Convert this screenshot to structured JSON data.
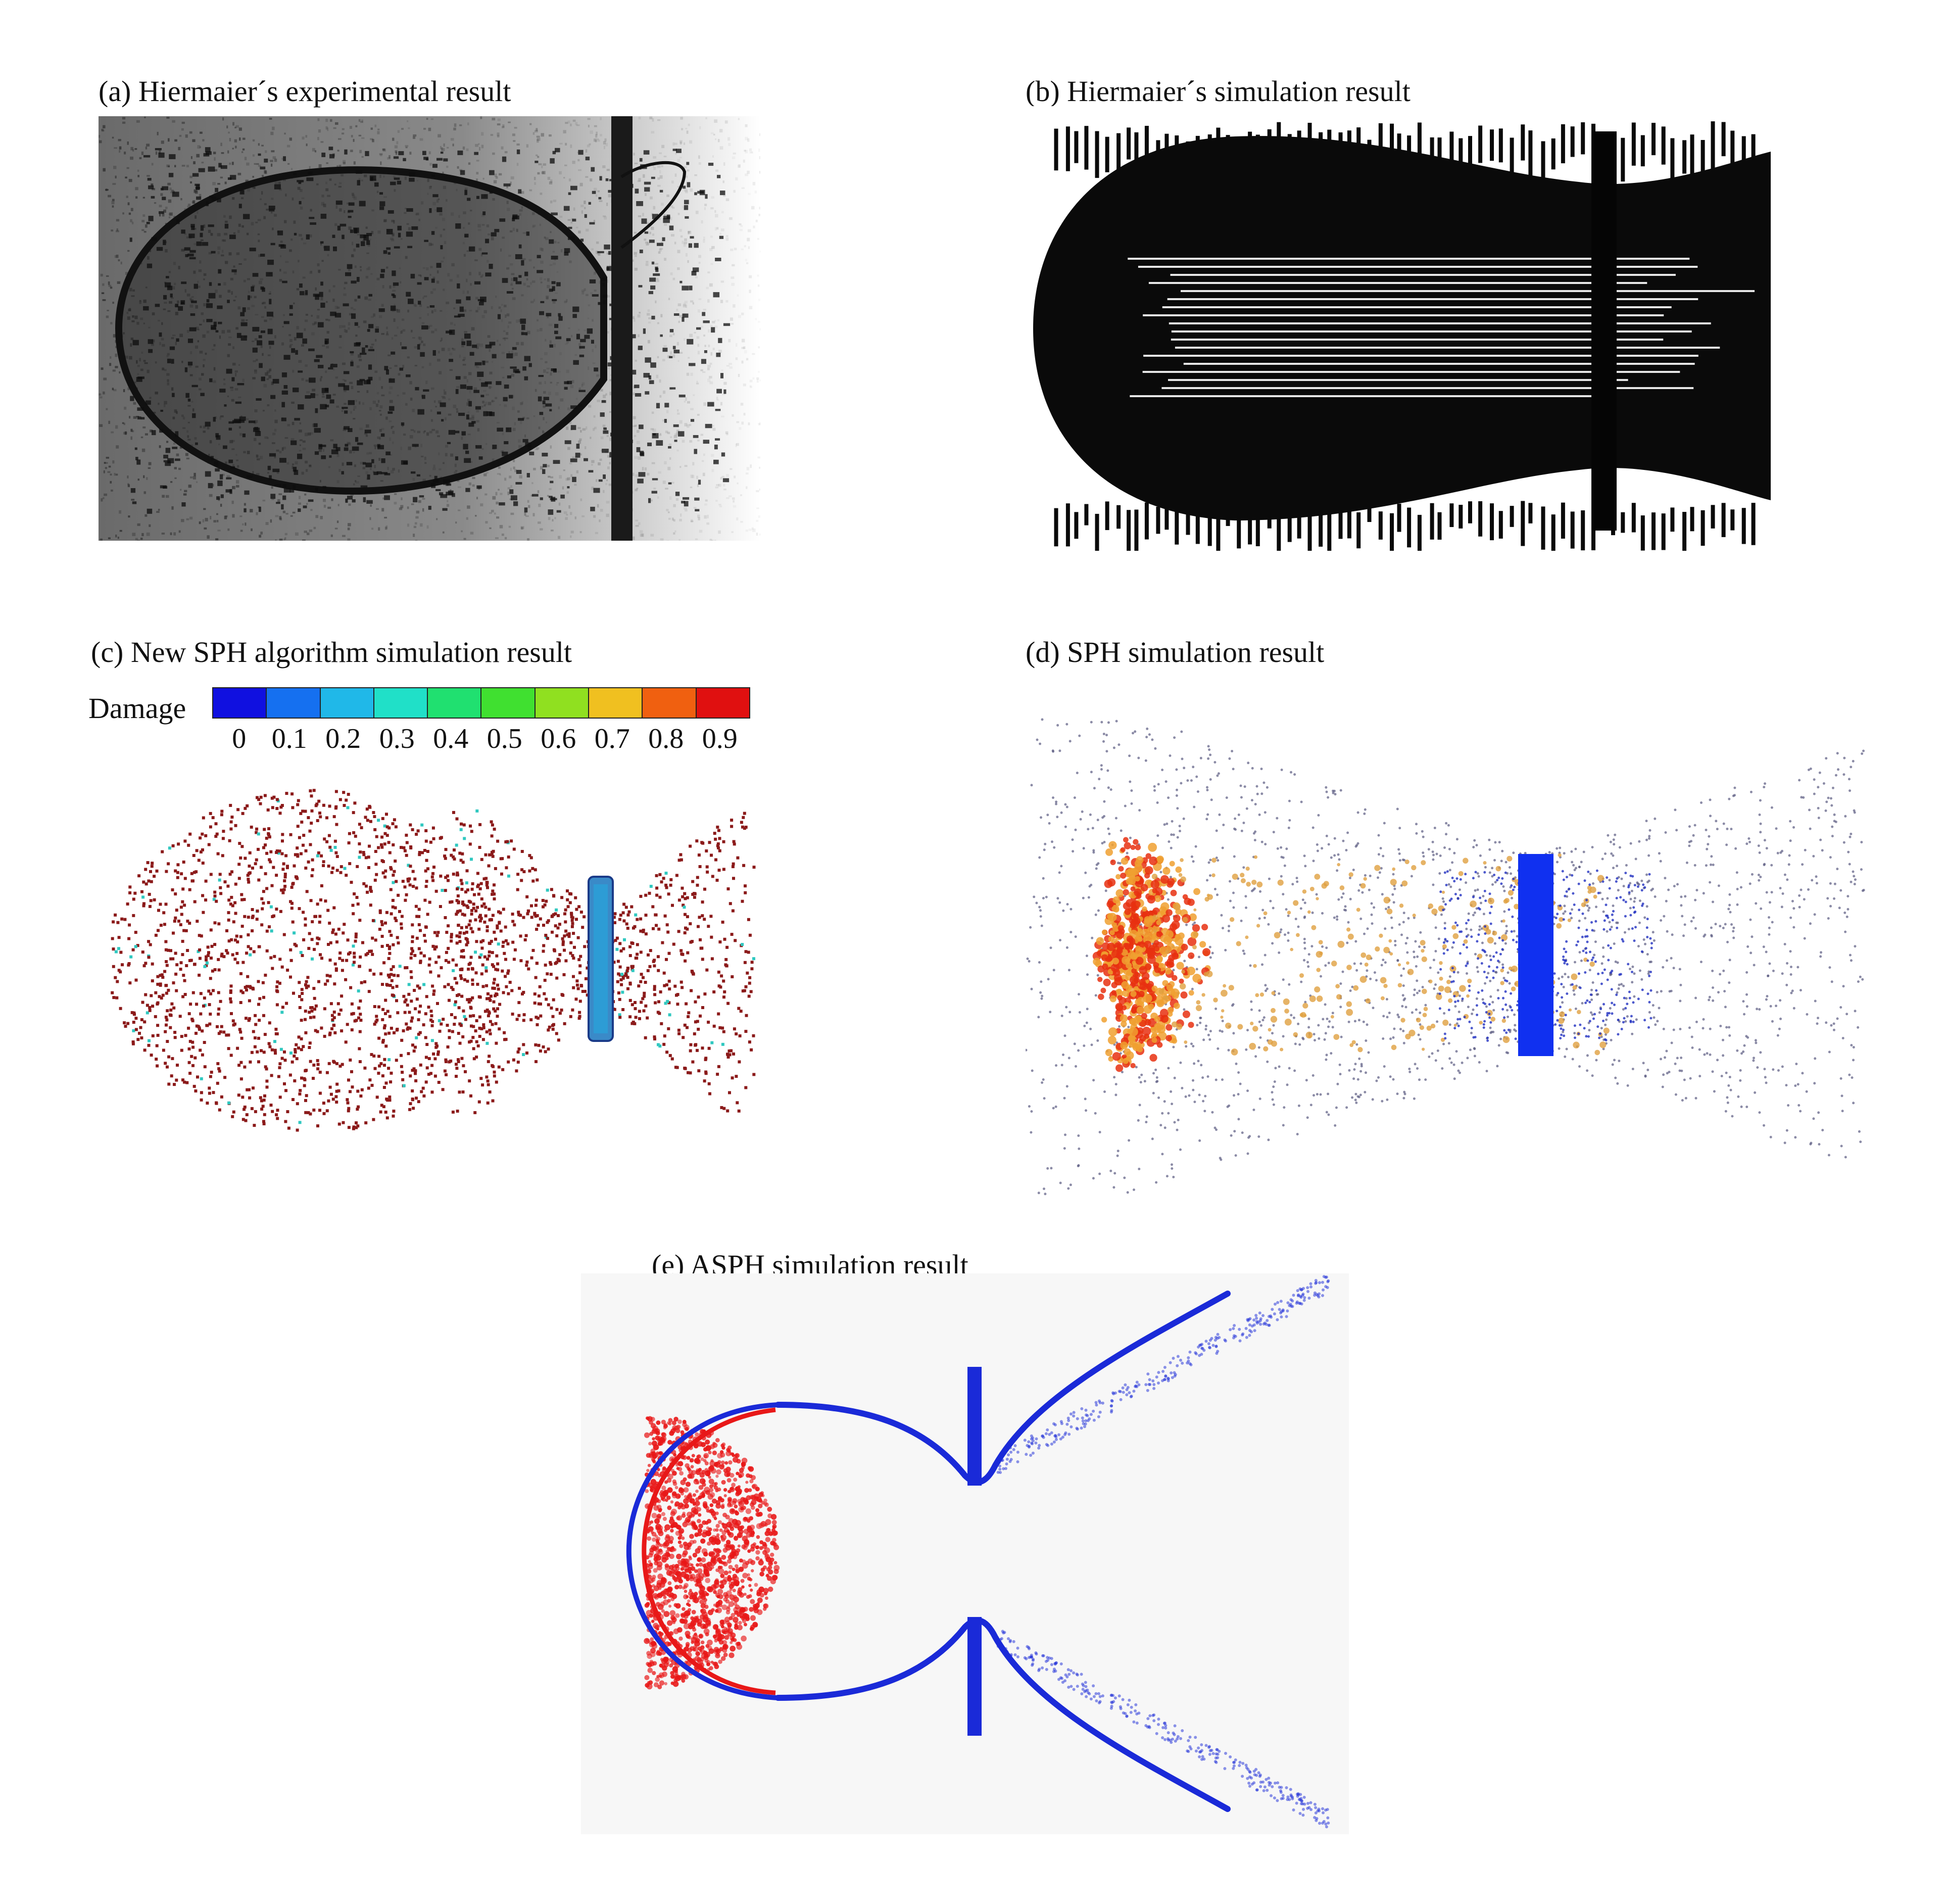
{
  "captions": {
    "a": "(a) Hiermaier´s experimental result",
    "b": "(b) Hiermaier´s simulation result",
    "c": "(c) New SPH algorithm simulation result",
    "d": "(d) SPH simulation result",
    "e": "(e) ASPH simulation result"
  },
  "colorbar": {
    "title": "Damage",
    "ticks": [
      "0",
      "0.1",
      "0.2",
      "0.3",
      "0.4",
      "0.5",
      "0.6",
      "0.7",
      "0.8",
      "0.9"
    ],
    "colors": [
      "#1010e0",
      "#1570f0",
      "#20b8e8",
      "#20e0c8",
      "#20e070",
      "#40e030",
      "#90e020",
      "#f0c020",
      "#f06010",
      "#e01010"
    ]
  },
  "colors": {
    "experiment_ink": "#141414",
    "simulation_ink": "#0a0a0a",
    "damage_particles": "#8b1a1a",
    "plate_blue": "#1030f0",
    "asph_red": "#e81818",
    "asph_blue": "#1a2ad8"
  }
}
